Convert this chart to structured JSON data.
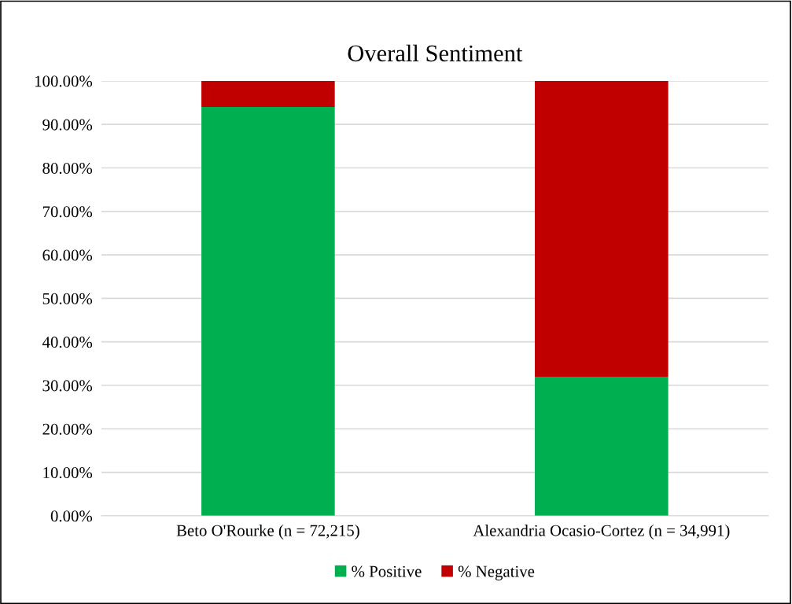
{
  "chart_data": {
    "type": "bar",
    "title": "Overall Sentiment",
    "stacked": true,
    "categories": [
      "Beto O'Rourke (n = 72,215)",
      "Alexandria Ocasio-Cortez (n = 34,991)"
    ],
    "series": [
      {
        "name": "% Positive",
        "color": "#00b050",
        "values": [
          94,
          32
        ]
      },
      {
        "name": "% Negative",
        "color": "#c00000",
        "values": [
          6,
          68
        ]
      }
    ],
    "ylim": [
      0,
      100
    ],
    "yticks": [
      {
        "value": 0,
        "label": "0.00%"
      },
      {
        "value": 10,
        "label": "10.00%"
      },
      {
        "value": 20,
        "label": "20.00%"
      },
      {
        "value": 30,
        "label": "30.00%"
      },
      {
        "value": 40,
        "label": "40.00%"
      },
      {
        "value": 50,
        "label": "50.00%"
      },
      {
        "value": 60,
        "label": "60.00%"
      },
      {
        "value": 70,
        "label": "70.00%"
      },
      {
        "value": 80,
        "label": "80.00%"
      },
      {
        "value": 90,
        "label": "90.00%"
      },
      {
        "value": 100,
        "label": "100.00%"
      }
    ],
    "grid": "y",
    "legend": "bottom"
  }
}
